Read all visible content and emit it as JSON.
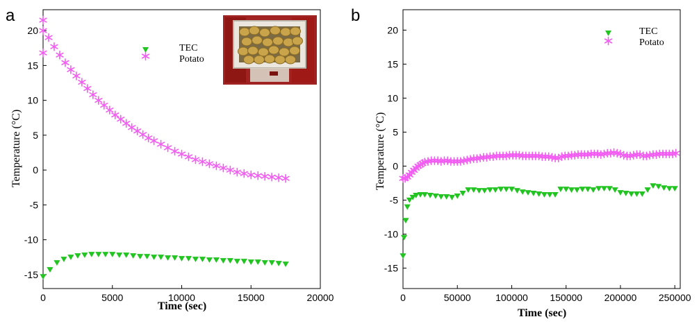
{
  "colors": {
    "tec": "#22c422",
    "potato": "#f25cf2",
    "axis": "#000000"
  },
  "chart_data": [
    {
      "panel_label": "a",
      "type": "scatter",
      "xlabel": "Time (sec)",
      "ylabel": "Temperature (°C)",
      "xlim": [
        0,
        20000
      ],
      "ylim": [
        -17,
        23
      ],
      "xticks": [
        0,
        5000,
        10000,
        15000,
        20000
      ],
      "yticks": [
        -15,
        -10,
        -5,
        0,
        5,
        10,
        15,
        20
      ],
      "legend": {
        "placement": "top-center",
        "entries": [
          "TEC",
          "Potato"
        ]
      },
      "inset_photo": "photo of potatoes in an insulated box",
      "series": [
        {
          "name": "TEC",
          "marker": "triangle-down",
          "x": [
            0,
            500,
            1000,
            1500,
            2000,
            2500,
            3000,
            3500,
            4000,
            4500,
            5000,
            5500,
            6000,
            6500,
            7000,
            7500,
            8000,
            8500,
            9000,
            9500,
            10000,
            10500,
            11000,
            11500,
            12000,
            12500,
            13000,
            13500,
            14000,
            14500,
            15000,
            15500,
            16000,
            16500,
            17000,
            17500
          ],
          "y": [
            -15.3,
            -14.3,
            -13.3,
            -12.8,
            -12.5,
            -12.3,
            -12.2,
            -12.1,
            -12.1,
            -12.1,
            -12.1,
            -12.2,
            -12.2,
            -12.3,
            -12.4,
            -12.4,
            -12.5,
            -12.5,
            -12.6,
            -12.6,
            -12.7,
            -12.7,
            -12.8,
            -12.8,
            -12.9,
            -12.9,
            -13.0,
            -13.0,
            -13.1,
            -13.1,
            -13.2,
            -13.2,
            -13.3,
            -13.3,
            -13.4,
            -13.5
          ]
        },
        {
          "name": "Potato",
          "marker": "asterisk",
          "x": [
            0,
            0,
            0,
            400,
            800,
            1200,
            1600,
            2000,
            2400,
            2800,
            3200,
            3600,
            4000,
            4400,
            4800,
            5200,
            5600,
            6000,
            6400,
            6800,
            7200,
            7600,
            8000,
            8500,
            9000,
            9500,
            10000,
            10500,
            11000,
            11500,
            12000,
            12500,
            13000,
            13500,
            14000,
            14500,
            15000,
            15500,
            16000,
            16500,
            17000,
            17500
          ],
          "y": [
            21.5,
            20.0,
            16.8,
            19.0,
            17.7,
            16.5,
            15.4,
            14.4,
            13.5,
            12.6,
            11.7,
            10.8,
            10.0,
            9.3,
            8.6,
            7.9,
            7.3,
            6.7,
            6.1,
            5.6,
            5.1,
            4.6,
            4.2,
            3.7,
            3.2,
            2.7,
            2.3,
            1.9,
            1.5,
            1.2,
            0.9,
            0.6,
            0.3,
            0.0,
            -0.3,
            -0.5,
            -0.7,
            -0.8,
            -0.9,
            -1.0,
            -1.1,
            -1.2
          ]
        }
      ]
    },
    {
      "panel_label": "b",
      "type": "scatter",
      "xlabel": "Time (sec)",
      "ylabel": "Temperature (°C)",
      "xlim": [
        0,
        255000
      ],
      "ylim": [
        -18,
        23
      ],
      "xticks": [
        0,
        50000,
        100000,
        150000,
        200000,
        250000
      ],
      "yticks": [
        -15,
        -10,
        -5,
        0,
        5,
        10,
        15,
        20
      ],
      "legend": {
        "placement": "top-right",
        "entries": [
          "TEC",
          "Potato"
        ]
      },
      "series": [
        {
          "name": "TEC",
          "marker": "triangle-down",
          "x": [
            0,
            1000,
            2500,
            4000,
            6000,
            9000,
            12000,
            16000,
            20000,
            25000,
            30000,
            35000,
            40000,
            45000,
            50000,
            55000,
            60000,
            65000,
            70000,
            75000,
            80000,
            85000,
            90000,
            95000,
            100000,
            105000,
            110000,
            115000,
            120000,
            125000,
            130000,
            135000,
            140000,
            145000,
            150000,
            155000,
            160000,
            165000,
            170000,
            175000,
            180000,
            185000,
            190000,
            195000,
            200000,
            205000,
            210000,
            215000,
            220000,
            225000,
            230000,
            235000,
            240000,
            245000,
            250000
          ],
          "y": [
            -13.2,
            -10.5,
            -8.0,
            -6.0,
            -5.0,
            -4.6,
            -4.3,
            -4.2,
            -4.2,
            -4.3,
            -4.4,
            -4.5,
            -4.5,
            -4.6,
            -4.4,
            -4.0,
            -3.5,
            -3.5,
            -3.6,
            -3.6,
            -3.5,
            -3.5,
            -3.4,
            -3.4,
            -3.4,
            -3.6,
            -3.8,
            -3.9,
            -4.0,
            -4.1,
            -4.2,
            -4.2,
            -4.2,
            -3.4,
            -3.4,
            -3.5,
            -3.5,
            -3.4,
            -3.4,
            -3.5,
            -3.3,
            -3.3,
            -3.3,
            -3.5,
            -3.9,
            -4.0,
            -4.1,
            -4.1,
            -4.1,
            -3.5,
            -2.9,
            -3.0,
            -3.2,
            -3.3,
            -3.3
          ]
        },
        {
          "name": "Potato",
          "marker": "asterisk",
          "x": [
            0,
            2000,
            4000,
            6000,
            8000,
            10000,
            12000,
            14000,
            16000,
            18000,
            20000,
            23000,
            26000,
            29000,
            32000,
            35000,
            38000,
            41000,
            44000,
            47000,
            50000,
            53000,
            56000,
            59000,
            62000,
            65000,
            68000,
            71000,
            74000,
            77000,
            80000,
            83000,
            86000,
            89000,
            92000,
            95000,
            98000,
            101000,
            104000,
            107000,
            110000,
            113000,
            116000,
            119000,
            122000,
            125000,
            128000,
            131000,
            134000,
            137000,
            140000,
            143000,
            146000,
            149000,
            152000,
            155000,
            158000,
            161000,
            164000,
            167000,
            170000,
            173000,
            176000,
            179000,
            182000,
            185000,
            188000,
            191000,
            194000,
            197000,
            200000,
            203000,
            206000,
            209000,
            212000,
            215000,
            218000,
            221000,
            224000,
            227000,
            230000,
            233000,
            236000,
            239000,
            242000,
            245000,
            248000,
            251000
          ],
          "y": [
            -1.8,
            -1.8,
            -1.6,
            -1.3,
            -0.9,
            -0.6,
            -0.3,
            0.0,
            0.2,
            0.4,
            0.6,
            0.7,
            0.8,
            0.8,
            0.8,
            0.7,
            0.8,
            0.8,
            0.7,
            0.7,
            0.7,
            0.7,
            0.8,
            0.9,
            1.0,
            1.1,
            1.1,
            1.2,
            1.3,
            1.3,
            1.4,
            1.4,
            1.5,
            1.5,
            1.5,
            1.5,
            1.6,
            1.6,
            1.6,
            1.6,
            1.5,
            1.5,
            1.5,
            1.5,
            1.5,
            1.5,
            1.4,
            1.4,
            1.4,
            1.3,
            1.2,
            1.2,
            1.4,
            1.5,
            1.5,
            1.6,
            1.6,
            1.7,
            1.7,
            1.7,
            1.7,
            1.8,
            1.8,
            1.8,
            1.7,
            1.8,
            1.9,
            1.9,
            2.0,
            1.9,
            1.8,
            1.6,
            1.5,
            1.5,
            1.6,
            1.7,
            1.7,
            1.5,
            1.5,
            1.6,
            1.7,
            1.7,
            1.8,
            1.8,
            1.8,
            1.8,
            1.8,
            1.9
          ]
        }
      ]
    }
  ]
}
